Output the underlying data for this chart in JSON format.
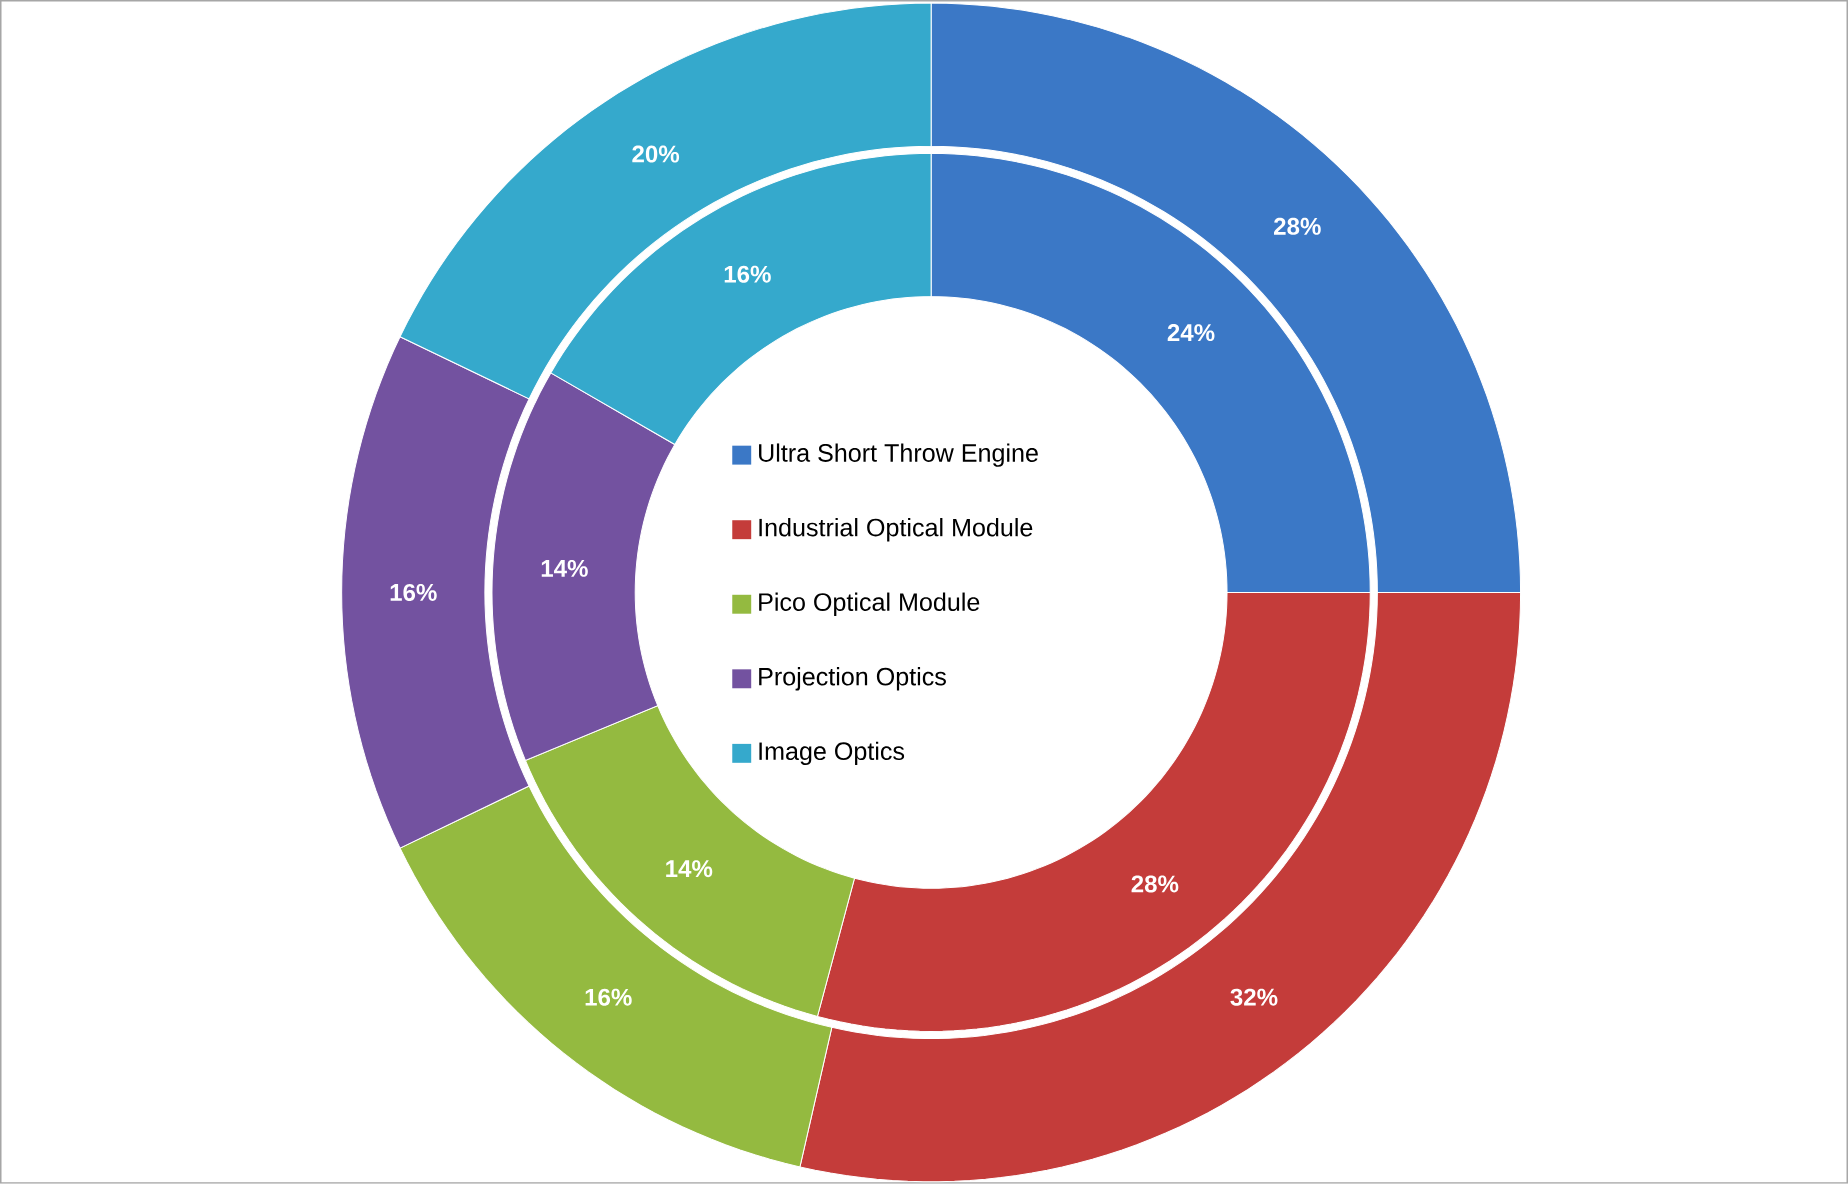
{
  "chart_data": {
    "type": "donut",
    "categories": [
      "Ultra Short Throw Engine",
      "Industrial Optical Module",
      "Pico Optical Module",
      "Projection Optics",
      "Image Optics"
    ],
    "colors": [
      "#3b78c6",
      "#c43c3a",
      "#94ba40",
      "#7352a0",
      "#35a9cc"
    ],
    "series": [
      {
        "values": [
          24,
          28,
          14,
          14,
          16
        ],
        "value_labels": [
          "24%",
          "28%",
          "14%",
          "14%",
          "16%"
        ]
      },
      {
        "values": [
          28,
          32,
          16,
          16,
          20
        ],
        "value_labels": [
          "28%",
          "32%",
          "16%",
          "16%",
          "20%"
        ]
      }
    ],
    "legend": "center"
  }
}
